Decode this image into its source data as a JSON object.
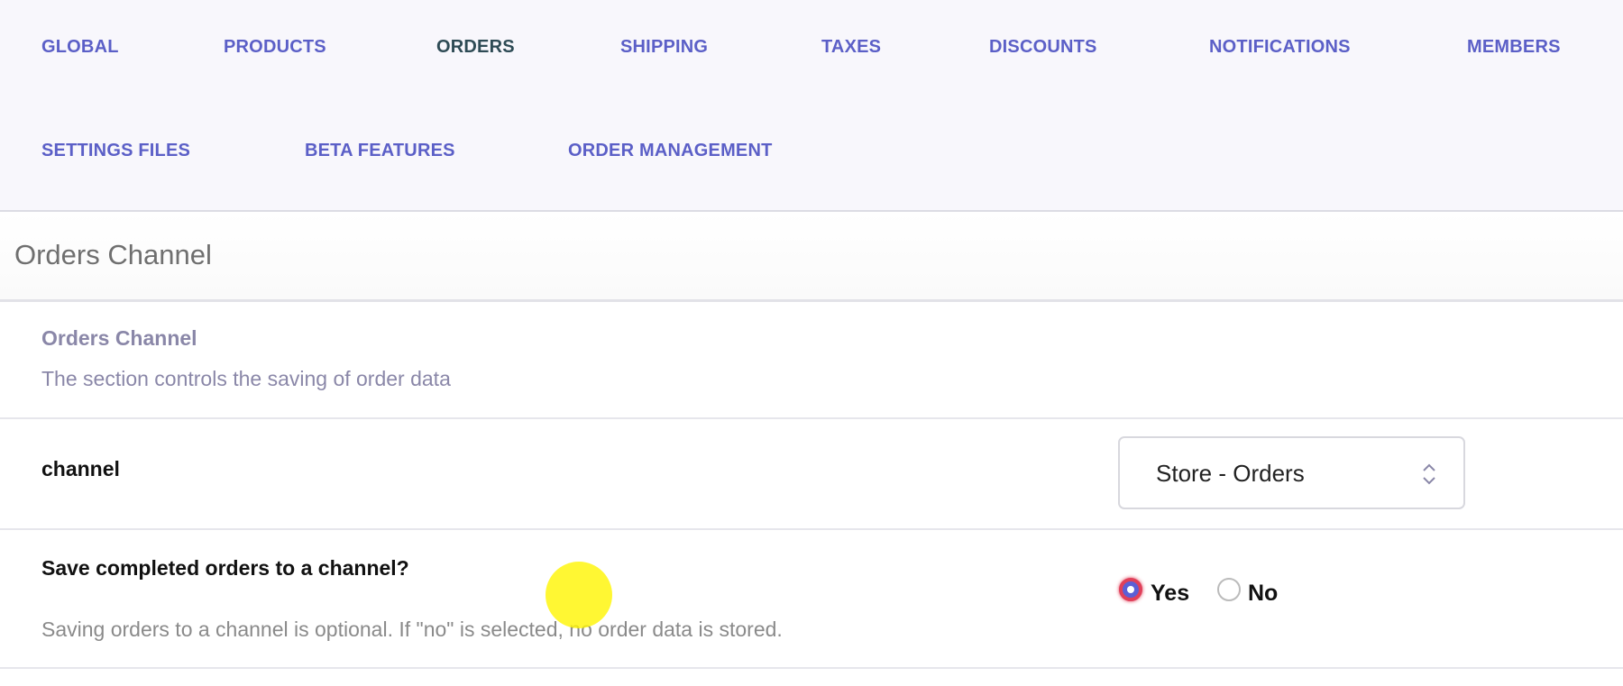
{
  "nav": {
    "items": [
      {
        "label": "GLOBAL"
      },
      {
        "label": "PRODUCTS"
      },
      {
        "label": "ORDERS",
        "active": true
      },
      {
        "label": "SHIPPING"
      },
      {
        "label": "TAXES"
      },
      {
        "label": "DISCOUNTS"
      },
      {
        "label": "NOTIFICATIONS"
      },
      {
        "label": "MEMBERS"
      },
      {
        "label": "SETTINGS FILES"
      },
      {
        "label": "BETA FEATURES"
      },
      {
        "label": "ORDER MANAGEMENT"
      }
    ]
  },
  "header": {
    "title": "Orders Channel"
  },
  "section": {
    "title": "Orders Channel",
    "description": "The section controls the saving of order data"
  },
  "fields": {
    "channel": {
      "label": "channel",
      "value": "Store - Orders"
    },
    "save_completed": {
      "label": "Save completed orders to a channel?",
      "options": [
        {
          "label": "Yes",
          "selected": true
        },
        {
          "label": "No",
          "selected": false
        }
      ],
      "help": "Saving orders to a channel is optional. If \"no\" is selected, no order data is stored."
    }
  },
  "colors": {
    "nav_link": "#5b5fc7",
    "nav_active": "#2e4b55",
    "radio_selected": "#5b5fd6"
  }
}
